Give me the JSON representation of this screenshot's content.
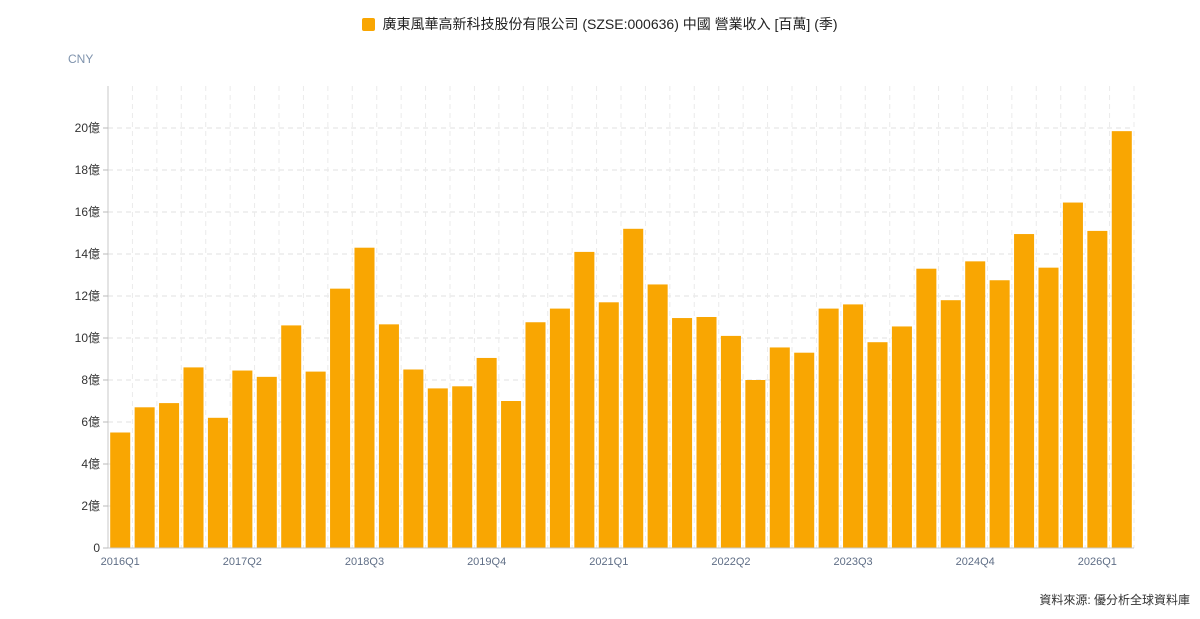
{
  "legend": {
    "label": "廣東風華高新科技股份有限公司 (SZSE:000636) 中國 營業收入 [百萬] (季)",
    "color": "#F9A602"
  },
  "unit_label": "CNY",
  "source": "資料來源: 優分析全球資料庫",
  "chart_data": {
    "type": "bar",
    "title": "",
    "xlabel": "",
    "ylabel": "CNY",
    "ylim": [
      0,
      2200
    ],
    "yticks": [
      {
        "v": 0,
        "label": "0"
      },
      {
        "v": 200,
        "label": "2億"
      },
      {
        "v": 400,
        "label": "4億"
      },
      {
        "v": 600,
        "label": "6億"
      },
      {
        "v": 800,
        "label": "8億"
      },
      {
        "v": 1000,
        "label": "10億"
      },
      {
        "v": 1200,
        "label": "12億"
      },
      {
        "v": 1400,
        "label": "14億"
      },
      {
        "v": 1600,
        "label": "16億"
      },
      {
        "v": 1800,
        "label": "18億"
      },
      {
        "v": 2000,
        "label": "20億"
      }
    ],
    "xtick_labels": [
      {
        "index": 0,
        "label": "2016Q1"
      },
      {
        "index": 5,
        "label": "2017Q2"
      },
      {
        "index": 10,
        "label": "2018Q3"
      },
      {
        "index": 15,
        "label": "2019Q4"
      },
      {
        "index": 20,
        "label": "2021Q1"
      },
      {
        "index": 25,
        "label": "2022Q2"
      },
      {
        "index": 30,
        "label": "2023Q3"
      },
      {
        "index": 35,
        "label": "2024Q4"
      },
      {
        "index": 40,
        "label": "2026Q1"
      }
    ],
    "grid": true,
    "legend_position": "top-center",
    "series": [
      {
        "name": "廣東風華高新科技股份有限公司 (SZSE:000636) 中國 營業收入 [百萬] (季)",
        "color": "#F9A602",
        "values": [
          550,
          670,
          690,
          860,
          620,
          845,
          815,
          1060,
          840,
          1235,
          1430,
          1065,
          850,
          760,
          770,
          905,
          700,
          1075,
          1140,
          1410,
          1170,
          1520,
          1255,
          1095,
          1100,
          1010,
          800,
          955,
          930,
          1140,
          1160,
          980,
          1055,
          1330,
          1180,
          1365,
          1275,
          1495,
          1335,
          1645,
          1510,
          1985
        ]
      }
    ]
  }
}
